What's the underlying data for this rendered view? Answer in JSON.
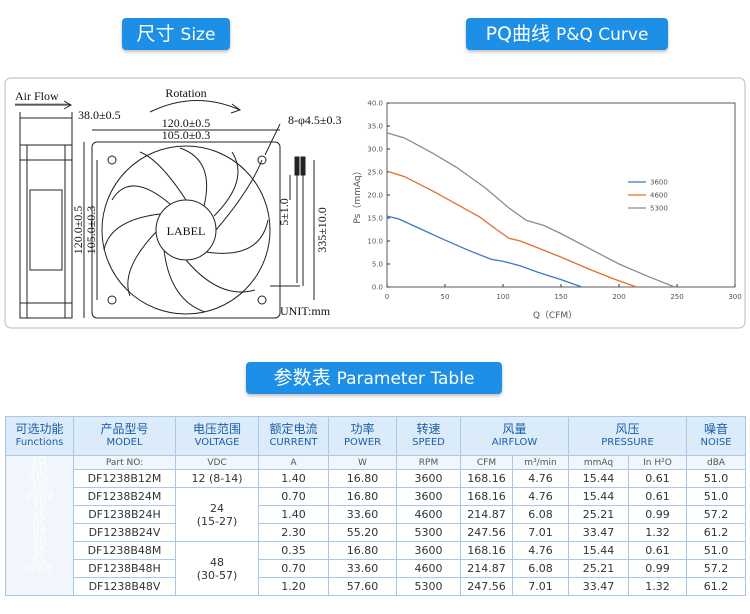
{
  "sections": {
    "size": {
      "zh": "尺寸",
      "en": "Size"
    },
    "pq": {
      "zh": "PQ曲线",
      "en": "P&Q Curve"
    },
    "params": {
      "zh": "参数表",
      "en": "Parameter Table"
    }
  },
  "drawing": {
    "air_flow": "Air Flow",
    "rotation": "Rotation",
    "depth": "38.0±0.5",
    "width_outer": "120.0±0.5",
    "width_hole": "105.0±0.3",
    "holes": "8-φ4.5±0.3",
    "label": "LABEL",
    "height_outer": "120.0±0.5",
    "height_hole": "105.0±0.3",
    "wire_strip": "5±1.0",
    "wire_length": "335±10.0",
    "unit": "UNIT:mm"
  },
  "pq_chart": {
    "type": "line",
    "x_label": "Q（CFM）",
    "y_label": "Ps（mmAq）",
    "xlim": [
      0,
      300
    ],
    "ylim": [
      0,
      40
    ],
    "xticks": [
      0,
      50,
      100,
      150,
      200,
      250,
      300
    ],
    "yticks": [
      {
        "value": 0,
        "label": "0.0"
      },
      {
        "value": 5,
        "label": "5.0"
      },
      {
        "value": 10,
        "label": "10.0"
      },
      {
        "value": 15,
        "label": "15.0"
      },
      {
        "value": 20,
        "label": "20.0"
      },
      {
        "value": 25,
        "label": "25.0"
      },
      {
        "value": 30,
        "label": "30.0"
      },
      {
        "value": 35,
        "label": "35.0"
      },
      {
        "value": 40,
        "label": "40.0"
      }
    ],
    "series": [
      {
        "name": "3600",
        "color": "#3b78c2",
        "x": [
          0,
          10,
          30,
          50,
          70,
          90,
          100,
          115,
          130,
          150,
          168
        ],
        "values": [
          15.4,
          14.8,
          12.5,
          10.2,
          8,
          6,
          5.6,
          4.6,
          3.2,
          1.6,
          0
        ]
      },
      {
        "name": "4600",
        "color": "#e0702a",
        "x": [
          0,
          15,
          40,
          60,
          80,
          95,
          105,
          115,
          130,
          150,
          175,
          195,
          215
        ],
        "values": [
          25.2,
          24,
          20.8,
          18,
          15.2,
          12.4,
          10.6,
          10,
          8.5,
          6.5,
          3.8,
          1.8,
          0
        ]
      },
      {
        "name": "5300",
        "color": "#8c8c8c",
        "x": [
          0,
          15,
          40,
          60,
          85,
          105,
          120,
          135,
          150,
          175,
          200,
          225,
          248
        ],
        "values": [
          33.5,
          32.4,
          29,
          26,
          21.5,
          17.2,
          14.5,
          13.4,
          11.6,
          8.3,
          5,
          2.3,
          0
        ]
      }
    ]
  },
  "table": {
    "functions_header": {
      "zh": "可选功能",
      "en": "Functions"
    },
    "functions": [
      "FG",
      "RD",
      "RDL",
      "LD",
      "PWM",
      "TP",
      "VC",
      "RC",
      "RP",
      "SR",
      "SS",
      "CL",
      "IPX8"
    ],
    "headers": [
      {
        "zh": "产品型号",
        "en": "MODEL"
      },
      {
        "zh": "电压范围",
        "en": "VOLTAGE"
      },
      {
        "zh": "额定电流",
        "en": "CURRENT"
      },
      {
        "zh": "功率",
        "en": "POWER"
      },
      {
        "zh": "转速",
        "en": "SPEED"
      },
      {
        "zh": "风量",
        "en": "AIRFLOW"
      },
      {
        "zh": "风压",
        "en": "PRESSURE"
      },
      {
        "zh": "噪音",
        "en": "NOISE"
      }
    ],
    "subheaders": [
      "Part NO:",
      "VDC",
      "A",
      "W",
      "RPM",
      "CFM",
      "m³/min",
      "mmAq",
      "In H²O",
      "dBA"
    ],
    "groups": [
      {
        "voltage": [
          "12 (8-14)"
        ],
        "rows": [
          [
            "DF1238B12M",
            "1.40",
            "16.80",
            "3600",
            "168.16",
            "4.76",
            "15.44",
            "0.61",
            "51.0"
          ]
        ]
      },
      {
        "voltage": [
          "24",
          "(15-27)"
        ],
        "rows": [
          [
            "DF1238B24M",
            "0.70",
            "16.80",
            "3600",
            "168.16",
            "4.76",
            "15.44",
            "0.61",
            "51.0"
          ],
          [
            "DF1238B24H",
            "1.40",
            "33.60",
            "4600",
            "214.87",
            "6.08",
            "25.21",
            "0.99",
            "57.2"
          ],
          [
            "DF1238B24V",
            "2.30",
            "55.20",
            "5300",
            "247.56",
            "7.01",
            "33.47",
            "1.32",
            "61.2"
          ]
        ]
      },
      {
        "voltage": [
          "48",
          "(30-57)"
        ],
        "rows": [
          [
            "DF1238B48M",
            "0.35",
            "16.80",
            "3600",
            "168.16",
            "4.76",
            "15.44",
            "0.61",
            "51.0"
          ],
          [
            "DF1238B48H",
            "0.70",
            "33.60",
            "4600",
            "214.87",
            "6.08",
            "25.21",
            "0.99",
            "57.2"
          ],
          [
            "DF1238B48V",
            "1.20",
            "57.60",
            "5300",
            "247.56",
            "7.01",
            "33.47",
            "1.32",
            "61.2"
          ]
        ]
      }
    ]
  }
}
